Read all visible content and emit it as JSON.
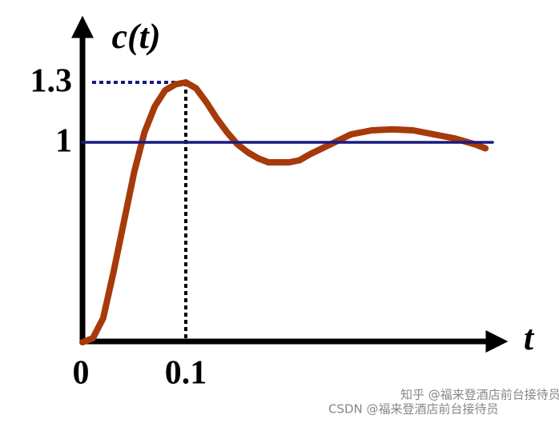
{
  "chart_data": {
    "type": "line",
    "y_label": "c(t)",
    "x_label": "t",
    "xlim": [
      0,
      0.41
    ],
    "ylim": [
      0,
      1.6
    ],
    "xticks": [
      0,
      0.1
    ],
    "yticks": [
      1,
      1.3
    ],
    "series": [
      {
        "color": "#a63a0a",
        "x": [
          0,
          0.01,
          0.02,
          0.03,
          0.04,
          0.05,
          0.06,
          0.07,
          0.08,
          0.09,
          0.1,
          0.11,
          0.12,
          0.13,
          0.14,
          0.15,
          0.16,
          0.17,
          0.18,
          0.19,
          0.2,
          0.21,
          0.22,
          0.24,
          0.26,
          0.28,
          0.3,
          0.32,
          0.34,
          0.36,
          0.38,
          0.39
        ],
        "values": [
          0,
          0.02,
          0.12,
          0.35,
          0.6,
          0.85,
          1.05,
          1.18,
          1.26,
          1.29,
          1.3,
          1.27,
          1.2,
          1.12,
          1.05,
          0.99,
          0.95,
          0.92,
          0.9,
          0.9,
          0.9,
          0.91,
          0.94,
          0.99,
          1.04,
          1.06,
          1.065,
          1.06,
          1.04,
          1.02,
          0.99,
          0.97
        ]
      },
      {
        "color": "#1a1a80",
        "x": [
          0,
          0.397
        ],
        "values": [
          1,
          1
        ]
      }
    ],
    "watermarks": [
      "知乎 @福来登酒店前台接待员",
      "CSDN @福来登酒店前台接待员"
    ]
  }
}
